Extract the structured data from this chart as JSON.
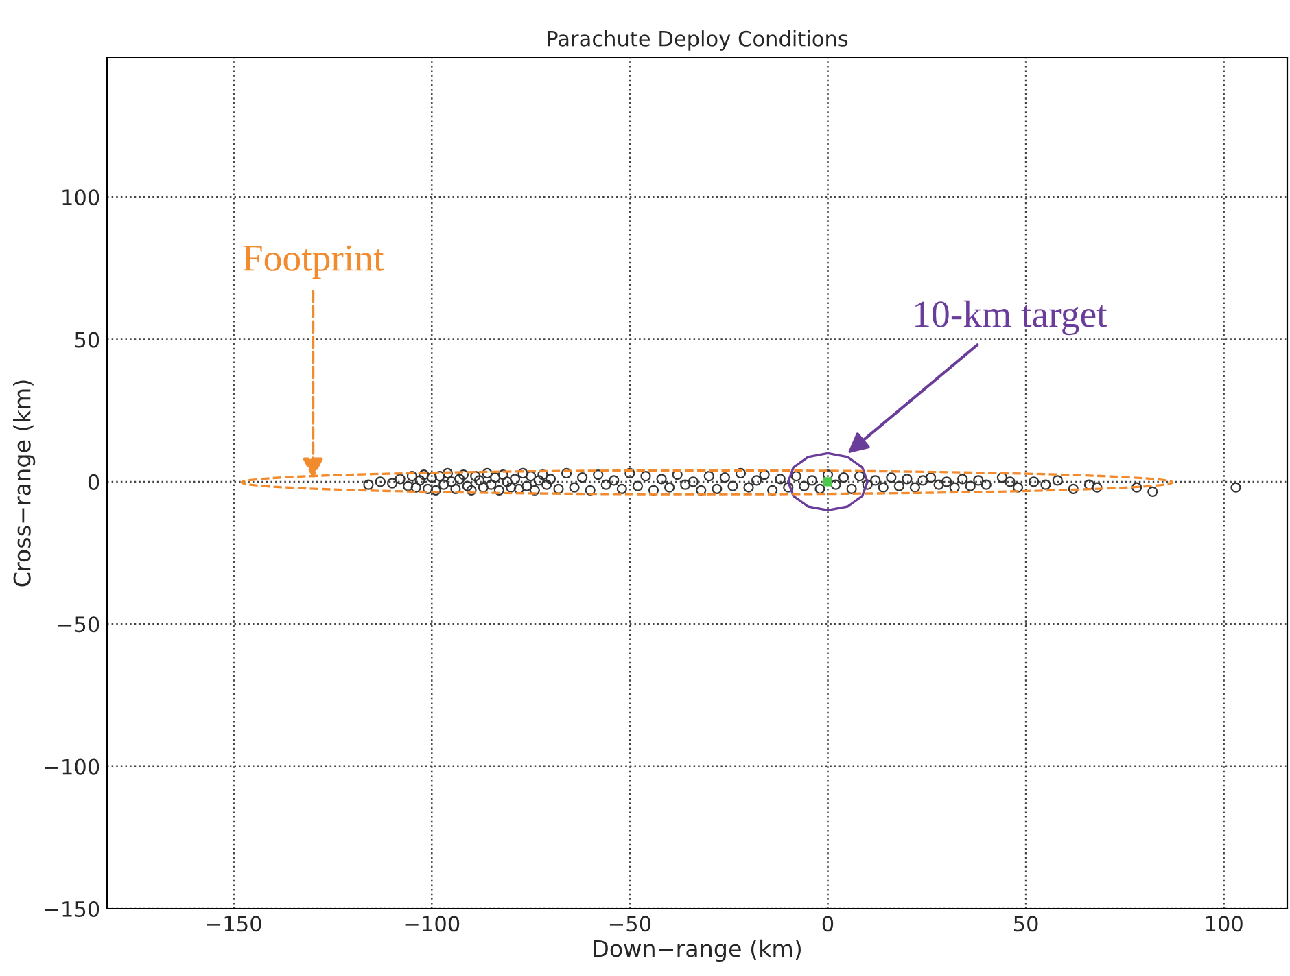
{
  "chart_data": {
    "type": "scatter",
    "title": "Parachute Deploy Conditions",
    "xlabel": "Down−range (km)",
    "ylabel": "Cross−range (km)",
    "xlim": [
      -182,
      116
    ],
    "ylim": [
      -150,
      149
    ],
    "xticks": [
      {
        "value": -150,
        "label": "−150"
      },
      {
        "value": -100,
        "label": "−100"
      },
      {
        "value": -50,
        "label": "−50"
      },
      0,
      50,
      100
    ],
    "yticks": [
      {
        "value": -150,
        "label": "−150"
      },
      {
        "value": -100,
        "label": "−100"
      },
      {
        "value": -50,
        "label": "−50"
      },
      0,
      50,
      100
    ],
    "grid": true,
    "series": [
      {
        "marker": "circle",
        "color": "#333333",
        "x": [
          -116,
          -113,
          -110,
          -108,
          -106,
          -105,
          -104,
          -103,
          -102,
          -101,
          -100,
          -99,
          -98,
          -97,
          -96,
          -95,
          -94,
          -93,
          -92,
          -91,
          -90,
          -89,
          -88,
          -87,
          -86,
          -85,
          -84,
          -83,
          -82,
          -81,
          -80,
          -79,
          -78,
          -77,
          -76,
          -75,
          -74,
          -73,
          -72,
          -71,
          -70,
          -68,
          -66,
          -64,
          -62,
          -60,
          -58,
          -56,
          -54,
          -52,
          -50,
          -48,
          -46,
          -44,
          -42,
          -40,
          -38,
          -36,
          -34,
          -32,
          -30,
          -28,
          -26,
          -24,
          -22,
          -20,
          -18,
          -16,
          -14,
          -12,
          -10,
          -8,
          -6,
          -4,
          -2,
          0,
          2,
          4,
          6,
          8,
          10,
          12,
          14,
          16,
          18,
          20,
          22,
          24,
          26,
          28,
          30,
          32,
          34,
          36,
          38,
          40,
          44,
          46,
          48,
          52,
          55,
          58,
          62,
          66,
          68,
          78,
          82,
          103
        ],
        "values": [
          -1,
          0,
          -0.5,
          1,
          -1.5,
          2,
          -2,
          0.5,
          2.5,
          -2.5,
          1.5,
          -3,
          2,
          -1,
          3,
          0,
          -2.5,
          1,
          2.5,
          -1.5,
          -3,
          2,
          0.5,
          -2,
          3,
          -1,
          1.5,
          -3,
          2.5,
          0,
          -2,
          1,
          -2.5,
          3,
          -1.5,
          2,
          -3,
          0.5,
          2.5,
          -1,
          1,
          -2.5,
          3,
          -2,
          1.5,
          -3,
          2.5,
          -1,
          0.5,
          -2.5,
          3,
          -1.5,
          2,
          -3,
          1,
          -2,
          2.5,
          -1,
          0,
          -3,
          2,
          -2.5,
          1.5,
          -1.5,
          3,
          -2,
          0.5,
          2.5,
          -3,
          1,
          -2,
          2,
          -1.5,
          0.5,
          -2.5,
          2.5,
          -1,
          1.5,
          -2.5,
          2,
          -1,
          0.5,
          -2,
          1.5,
          -1.5,
          1,
          -2,
          0.5,
          1.5,
          -1,
          0,
          -2,
          1,
          -1.5,
          0.5,
          -1,
          1.5,
          0,
          -2,
          0,
          -1,
          0.5,
          -2.5,
          -1,
          -2,
          -2,
          -3.5,
          -2
        ]
      },
      {
        "type": "line",
        "color": "#6a3d9a",
        "line_style": "solid",
        "x": [
          -10,
          -8.7,
          -5,
          0,
          5,
          8.7,
          10
        ],
        "values": [
          0,
          5,
          8.7,
          10,
          8.7,
          5,
          0
        ]
      },
      {
        "type": "line",
        "color": "#6a3d9a",
        "line_style": "solid",
        "x": [
          -10,
          -8.7,
          -5,
          0,
          5,
          8.7,
          10
        ],
        "values": [
          0,
          -5,
          -8.7,
          -10,
          -8.7,
          -5,
          0
        ]
      },
      {
        "marker": "square",
        "color": "#4cc84c",
        "x": [
          0
        ],
        "values": [
          0
        ]
      }
    ],
    "annotations": [
      "Footprint",
      {
        "text": "10-km target",
        "x": 5,
        "y": 10
      }
    ]
  }
}
